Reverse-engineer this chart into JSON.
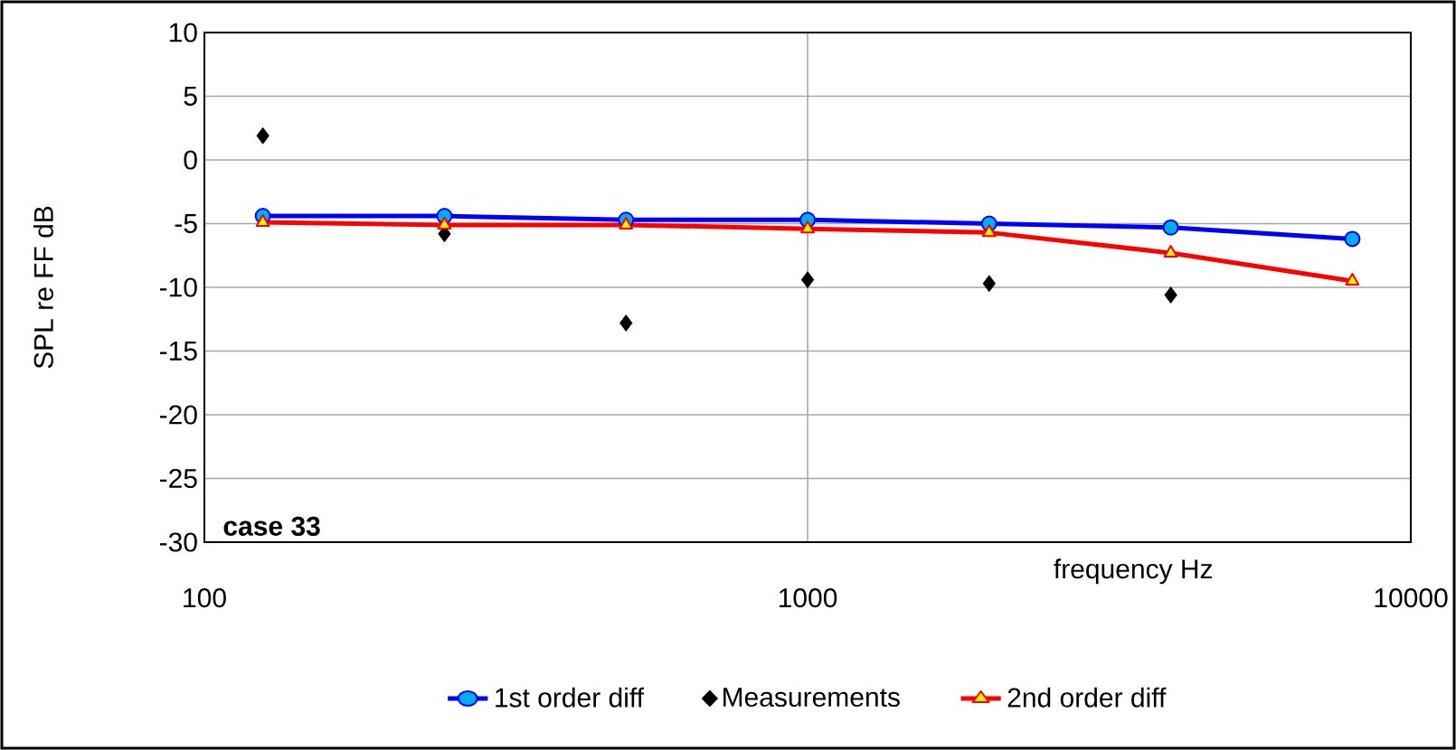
{
  "chart_data": {
    "type": "line",
    "xlabel": "frequency Hz",
    "ylabel": "SPL re FF dB",
    "x": [
      125,
      250,
      500,
      1000,
      2000,
      4000,
      8000
    ],
    "series": [
      {
        "name": "1st order diff",
        "color": "#0000ff",
        "marker": "circle",
        "values": [
          -4.4,
          -4.4,
          -4.7,
          -4.7,
          -5.0,
          -5.3,
          -6.2
        ]
      },
      {
        "name": "Measurements",
        "type": "scatter",
        "color": "#000000",
        "marker": "diamond",
        "x": [
          125,
          250,
          500,
          1000,
          2000,
          4000
        ],
        "values": [
          1.9,
          -5.8,
          -12.8,
          -9.4,
          -9.7,
          -10.6
        ]
      },
      {
        "name": "2nd order diff",
        "color": "#ff0000",
        "marker": "triangle",
        "values": [
          -4.9,
          -5.1,
          -5.1,
          -5.4,
          -5.7,
          -7.3,
          -9.5
        ]
      }
    ],
    "log": "x",
    "xlim": [
      100,
      10000
    ],
    "xticks": [
      100,
      1000,
      10000
    ],
    "ylim": [
      -30,
      10
    ],
    "yticks": [
      -30,
      -25,
      -20,
      -15,
      -10,
      -5,
      0,
      5,
      10
    ],
    "grid": true,
    "legend": "bottom",
    "annotations": [
      "case 33"
    ]
  }
}
